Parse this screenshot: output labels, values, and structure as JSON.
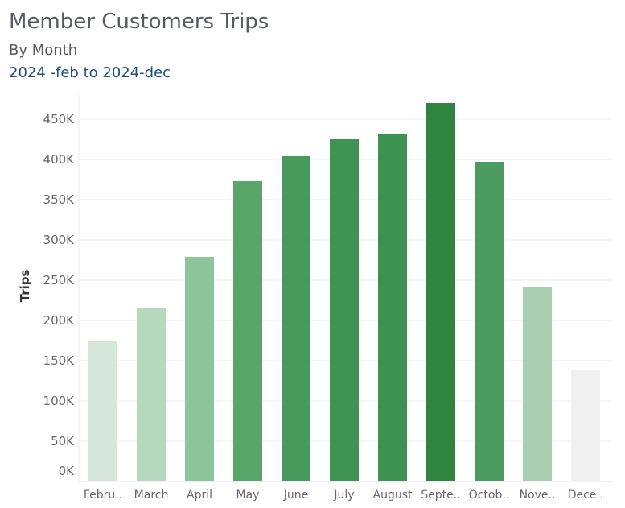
{
  "chart_data": {
    "type": "bar",
    "title": "Member Customers Trips",
    "subtitle": "By Month",
    "date_range": "2024 -feb to 2024-dec",
    "ylabel": "Trips",
    "xlabel": "",
    "ylim": [
      0,
      480000
    ],
    "yticks": [
      0,
      50000,
      100000,
      150000,
      200000,
      250000,
      300000,
      350000,
      400000,
      450000
    ],
    "ytick_labels": [
      "0K",
      "50K",
      "100K",
      "150K",
      "200K",
      "250K",
      "300K",
      "350K",
      "400K",
      "450K"
    ],
    "categories": [
      "Febru..",
      "March",
      "April",
      "May",
      "June",
      "July",
      "August",
      "Septe..",
      "Octob..",
      "Nove..",
      "Dece.."
    ],
    "values": [
      174000,
      215000,
      279000,
      373000,
      404000,
      425000,
      432000,
      470000,
      397000,
      241000,
      139000
    ],
    "colors": [
      "#d6e6da",
      "#b6d9be",
      "#8cc59a",
      "#5aa56a",
      "#489a5c",
      "#3f9453",
      "#3d9252",
      "#2d853f",
      "#4c9c5f",
      "#a6d0b0",
      "#f0f0f0"
    ],
    "grid": true
  }
}
